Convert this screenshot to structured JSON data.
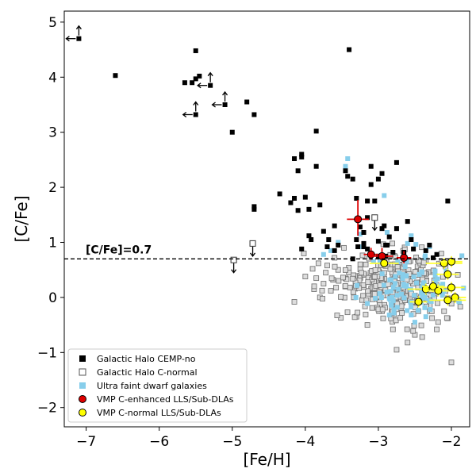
{
  "chart_data": {
    "type": "scatter",
    "xlabel": "[Fe/H]",
    "ylabel": "[C/Fe]",
    "xlim": [
      -7.3,
      -1.75
    ],
    "ylim": [
      -2.35,
      5.2
    ],
    "xticks": [
      -7,
      -6,
      -5,
      -4,
      -3,
      -2
    ],
    "xtick_labels": [
      "−7",
      "−6",
      "−5",
      "−4",
      "−3",
      "−2"
    ],
    "yticks": [
      -2,
      -1,
      0,
      1,
      2,
      3,
      4,
      5
    ],
    "ytick_labels": [
      "−2",
      "−1",
      "0",
      "1",
      "2",
      "3",
      "4",
      "5"
    ],
    "grid": false,
    "legend_position": "lower-left",
    "annotation": {
      "text": "[C/Fe]=0.7",
      "threshold": 0.7
    },
    "colors": {
      "cemp": "#000000",
      "cnormal_edge": "#777777",
      "cnormal_fill": "#dddddd",
      "ufd": "#87ceeb",
      "enhanced": "#dd0000",
      "normal": "#ffff00",
      "normal_err": "#ffff33"
    },
    "series": [
      {
        "name": "Galactic Halo CEMP-no",
        "marker": "filled-square",
        "points": [
          [
            -7.1,
            4.7
          ],
          [
            -6.6,
            4.03
          ],
          [
            -5.5,
            4.48
          ],
          [
            -5.5,
            3.97
          ],
          [
            -5.45,
            4.02
          ],
          [
            -5.55,
            3.9
          ],
          [
            -5.65,
            3.9
          ],
          [
            -5.5,
            3.32
          ],
          [
            -5.3,
            3.85
          ],
          [
            -5.1,
            3.5
          ],
          [
            -5.0,
            3.0
          ],
          [
            -4.8,
            3.55
          ],
          [
            -4.7,
            3.32
          ],
          [
            -4.7,
            1.65
          ],
          [
            -4.7,
            1.6
          ],
          [
            -4.35,
            1.88
          ],
          [
            -4.2,
            1.72
          ],
          [
            -4.15,
            2.52
          ],
          [
            -4.15,
            1.8
          ],
          [
            -4.1,
            2.3
          ],
          [
            -4.05,
            2.6
          ],
          [
            -4.05,
            2.55
          ],
          [
            -4.0,
            1.82
          ],
          [
            -4.1,
            1.58
          ],
          [
            -3.95,
            1.6
          ],
          [
            -3.85,
            3.02
          ],
          [
            -3.85,
            2.38
          ],
          [
            -3.8,
            1.68
          ],
          [
            -3.75,
            1.2
          ],
          [
            -3.95,
            1.12
          ],
          [
            -3.92,
            1.05
          ],
          [
            -4.05,
            0.88
          ],
          [
            -3.7,
            0.92
          ],
          [
            -3.68,
            1.05
          ],
          [
            -3.6,
            1.3
          ],
          [
            -3.55,
            0.95
          ],
          [
            -3.45,
            2.3
          ],
          [
            -3.42,
            2.2
          ],
          [
            -3.4,
            4.5
          ],
          [
            -3.35,
            2.15
          ],
          [
            -3.3,
            1.8
          ],
          [
            -3.25,
            1.28
          ],
          [
            -3.2,
            1.18
          ],
          [
            -3.3,
            1.05
          ],
          [
            -3.28,
            0.92
          ],
          [
            -3.2,
            0.98
          ],
          [
            -3.15,
            0.88
          ],
          [
            -3.1,
            2.38
          ],
          [
            -3.05,
            1.75
          ],
          [
            -3.0,
            2.15
          ],
          [
            -2.95,
            2.25
          ],
          [
            -3.0,
            1.02
          ],
          [
            -2.92,
            1.3
          ],
          [
            -2.88,
            0.95
          ],
          [
            -2.85,
            1.1
          ],
          [
            -2.8,
            0.82
          ],
          [
            -2.75,
            2.45
          ],
          [
            -2.6,
            1.38
          ],
          [
            -2.52,
            0.88
          ],
          [
            -2.55,
            1.05
          ],
          [
            -2.65,
            0.82
          ],
          [
            -2.35,
            0.85
          ],
          [
            -2.3,
            0.95
          ],
          [
            -2.25,
            0.72
          ],
          [
            -2.2,
            0.78
          ],
          [
            -2.05,
            1.75
          ],
          [
            -2.9,
            0.75
          ],
          [
            -3.35,
            0.7
          ],
          [
            -3.0,
            0.75
          ],
          [
            -2.9,
            0.95
          ],
          [
            -3.1,
            2.05
          ],
          [
            -3.15,
            1.45
          ],
          [
            -2.75,
            1.25
          ],
          [
            -3.6,
            0.85
          ],
          [
            -3.15,
            1.75
          ],
          [
            -2.95,
            1.25
          ],
          [
            -3.2,
            0.92
          ]
        ],
        "limits": [
          {
            "x": -7.1,
            "y": 4.7,
            "left": true,
            "up": true
          },
          {
            "x": -5.5,
            "y": 3.32,
            "left": true,
            "up": true
          },
          {
            "x": -5.3,
            "y": 3.85,
            "left": true,
            "up": true
          },
          {
            "x": -5.1,
            "y": 3.5,
            "left": true,
            "up": true
          }
        ]
      },
      {
        "name": "Galactic Halo C-normal",
        "marker": "open-square",
        "generated": {
          "count": 300,
          "cx": -2.75,
          "cy": 0.22,
          "sx": 0.35,
          "sy": 0.32,
          "seed": 5
        },
        "points": [
          [
            -4.15,
            -0.08
          ],
          [
            -4.02,
            0.8
          ],
          [
            -4.0,
            0.38
          ],
          [
            -3.9,
            0.52
          ],
          [
            -3.88,
            0.15
          ],
          [
            -3.85,
            0.35
          ],
          [
            -3.82,
            0.62
          ],
          [
            -3.8,
            0.0
          ],
          [
            -3.75,
            0.25
          ],
          [
            -3.72,
            0.45
          ],
          [
            -3.7,
            0.58
          ],
          [
            -3.65,
            0.12
          ],
          [
            -3.62,
            0.32
          ],
          [
            -3.6,
            0.72
          ],
          [
            -3.55,
            0.5
          ],
          [
            -2.8,
            -0.58
          ],
          [
            -2.6,
            -0.82
          ],
          [
            -2.4,
            -0.72
          ],
          [
            -2.2,
            -0.58
          ],
          [
            -2.05,
            -0.38
          ],
          [
            -2.75,
            -0.95
          ],
          [
            -2.5,
            -0.68
          ],
          [
            -2.0,
            -1.18
          ],
          [
            -3.3,
            -0.35
          ],
          [
            -3.15,
            -0.5
          ],
          [
            -2.95,
            -0.25
          ],
          [
            -2.1,
            -0.25
          ]
        ],
        "limits": [
          {
            "x": -4.98,
            "y": 0.68,
            "down": true
          },
          {
            "x": -4.72,
            "y": 0.98,
            "down": true
          },
          {
            "x": -3.05,
            "y": 1.45,
            "down": true
          }
        ]
      },
      {
        "name": "Ultra faint dwarf galaxies",
        "marker": "filled-square",
        "generated": {
          "count": 90,
          "cx": -2.55,
          "cy": 0.2,
          "sx": 0.3,
          "sy": 0.28,
          "seed": 11
        },
        "points": [
          [
            -3.42,
            2.52
          ],
          [
            -3.45,
            2.38
          ],
          [
            -3.25,
            1.15
          ],
          [
            -3.22,
            0.92
          ],
          [
            -2.92,
            1.85
          ],
          [
            -2.88,
            1.18
          ],
          [
            -2.55,
            1.12
          ],
          [
            -2.6,
            0.98
          ],
          [
            -2.3,
            0.92
          ],
          [
            -3.65,
            0.85
          ],
          [
            -3.55,
            1.0
          ],
          [
            -3.75,
            0.78
          ],
          [
            -2.85,
            -0.32
          ],
          [
            -2.5,
            -0.45
          ],
          [
            -2.35,
            -0.35
          ],
          [
            -2.55,
            -0.32
          ]
        ]
      },
      {
        "name": "VMP C-enhanced LLS/Sub-DLAs",
        "marker": "red-circle",
        "points": [
          {
            "x": -3.28,
            "y": 1.42,
            "ex": 0.15,
            "eyu": 0.35,
            "eyl": 0.3
          },
          {
            "x": -3.1,
            "y": 0.78,
            "ex": 0.1,
            "eyu": 0.12,
            "eyl": 0.1
          },
          {
            "x": -2.95,
            "y": 0.75,
            "ex": 0.15,
            "eyu": 0.15,
            "eyl": 0.12
          },
          {
            "x": -2.65,
            "y": 0.72,
            "ex": 0.1,
            "eyu": 0.12,
            "eyl": 0.1
          }
        ]
      },
      {
        "name": "VMP C-normal LLS/Sub-DLAs",
        "marker": "yellow-circle",
        "points": [
          {
            "x": -2.92,
            "y": 0.62,
            "ex": 0.2,
            "eyu": 0.0,
            "eyl": 0.0
          },
          {
            "x": -2.45,
            "y": -0.08,
            "ex": 0.12,
            "eyu": 0.1,
            "eyl": 0.1
          },
          {
            "x": -2.35,
            "y": 0.15,
            "ex": 0.25,
            "eyu": 0.1,
            "eyl": 0.1
          },
          {
            "x": -2.25,
            "y": 0.2,
            "ex": 0.15,
            "eyu": 0.1,
            "eyl": 0.1
          },
          {
            "x": -2.18,
            "y": 0.12,
            "ex": 0.2,
            "eyu": 0.12,
            "eyl": 0.1
          },
          {
            "x": -2.1,
            "y": 0.62,
            "ex": 0.25,
            "eyu": 0.1,
            "eyl": 0.1
          },
          {
            "x": -2.05,
            "y": 0.42,
            "ex": 0.15,
            "eyu": 0.1,
            "eyl": 0.1
          },
          {
            "x": -2.0,
            "y": 0.18,
            "ex": 0.18,
            "eyu": 0.1,
            "eyl": 0.1
          },
          {
            "x": -1.95,
            "y": 0.0,
            "ex": 0.15,
            "eyu": 0.1,
            "eyl": 0.1
          },
          {
            "x": -2.05,
            "y": -0.05,
            "ex": 0.25,
            "eyu": 0.1,
            "eyl": 0.1
          },
          {
            "x": -2.0,
            "y": 0.65,
            "ex": 0.15,
            "eyu": 0.1,
            "eyl": 0.1
          }
        ]
      }
    ]
  }
}
